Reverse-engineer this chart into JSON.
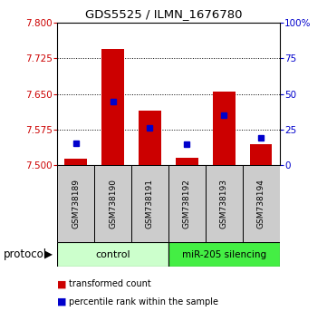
{
  "title": "GDS5525 / ILMN_1676780",
  "samples": [
    "GSM738189",
    "GSM738190",
    "GSM738191",
    "GSM738192",
    "GSM738193",
    "GSM738194"
  ],
  "red_bar_tops": [
    7.513,
    7.745,
    7.615,
    7.515,
    7.655,
    7.545
  ],
  "blue_y": [
    7.547,
    7.633,
    7.578,
    7.545,
    7.605,
    7.557
  ],
  "bar_base": 7.5,
  "ylim_left": [
    7.5,
    7.8
  ],
  "ylim_right": [
    0,
    100
  ],
  "left_yticks": [
    7.5,
    7.575,
    7.65,
    7.725,
    7.8
  ],
  "right_yticks": [
    0,
    25,
    50,
    75,
    100
  ],
  "right_yticklabels": [
    "0",
    "25",
    "50",
    "75",
    "100%"
  ],
  "gridlines": [
    7.575,
    7.65,
    7.725
  ],
  "protocol_label": "protocol",
  "legend_items": [
    {
      "color": "#cc0000",
      "label": "transformed count"
    },
    {
      "color": "#0000cc",
      "label": "percentile rank within the sample"
    }
  ],
  "bar_color": "#cc0000",
  "blue_color": "#0000cc",
  "bar_width": 0.6,
  "blue_marker_size": 5,
  "control_color": "#ccffcc",
  "mir_color": "#44ee44",
  "tick_color_left": "#cc0000",
  "tick_color_right": "#0000cc",
  "label_box_color": "#cccccc",
  "title_fontsize": 9.5
}
